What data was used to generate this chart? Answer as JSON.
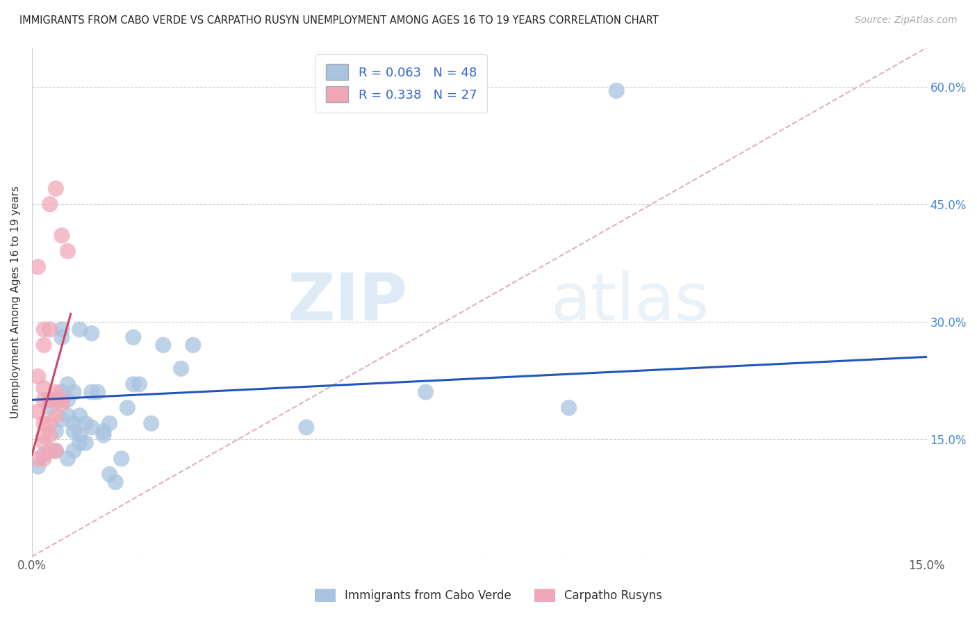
{
  "title": "IMMIGRANTS FROM CABO VERDE VS CARPATHO RUSYN UNEMPLOYMENT AMONG AGES 16 TO 19 YEARS CORRELATION CHART",
  "source": "Source: ZipAtlas.com",
  "ylabel": "Unemployment Among Ages 16 to 19 years",
  "xlim": [
    0,
    0.15
  ],
  "ylim": [
    0,
    0.65
  ],
  "x_ticks": [
    0.0,
    0.05,
    0.1,
    0.15
  ],
  "x_tick_labels": [
    "0.0%",
    "",
    "",
    "15.0%"
  ],
  "y_ticks": [
    0.0,
    0.15,
    0.3,
    0.45,
    0.6
  ],
  "y_tick_labels_right": [
    "",
    "15.0%",
    "30.0%",
    "45.0%",
    "60.0%"
  ],
  "legend1_r": "0.063",
  "legend1_n": "48",
  "legend2_r": "0.338",
  "legend2_n": "27",
  "cabo_verde_color": "#a8c4e0",
  "carpatho_rusyn_color": "#f0a8b8",
  "cabo_verde_line_color": "#2255bb",
  "carpatho_rusyn_line_color": "#cc4466",
  "diagonal_line_color": "#e0b0b8",
  "watermark_zip": "ZIP",
  "watermark_atlas": "atlas",
  "cabo_verde_points": [
    [
      0.001,
      0.115
    ],
    [
      0.002,
      0.13
    ],
    [
      0.003,
      0.19
    ],
    [
      0.003,
      0.2
    ],
    [
      0.004,
      0.135
    ],
    [
      0.004,
      0.16
    ],
    [
      0.004,
      0.2
    ],
    [
      0.005,
      0.175
    ],
    [
      0.005,
      0.2
    ],
    [
      0.005,
      0.21
    ],
    [
      0.005,
      0.28
    ],
    [
      0.005,
      0.29
    ],
    [
      0.006,
      0.125
    ],
    [
      0.006,
      0.18
    ],
    [
      0.006,
      0.2
    ],
    [
      0.006,
      0.22
    ],
    [
      0.007,
      0.135
    ],
    [
      0.007,
      0.16
    ],
    [
      0.007,
      0.17
    ],
    [
      0.007,
      0.21
    ],
    [
      0.008,
      0.145
    ],
    [
      0.008,
      0.155
    ],
    [
      0.008,
      0.18
    ],
    [
      0.008,
      0.29
    ],
    [
      0.009,
      0.145
    ],
    [
      0.009,
      0.17
    ],
    [
      0.01,
      0.165
    ],
    [
      0.01,
      0.21
    ],
    [
      0.01,
      0.285
    ],
    [
      0.011,
      0.21
    ],
    [
      0.012,
      0.155
    ],
    [
      0.012,
      0.16
    ],
    [
      0.013,
      0.105
    ],
    [
      0.013,
      0.17
    ],
    [
      0.014,
      0.095
    ],
    [
      0.015,
      0.125
    ],
    [
      0.016,
      0.19
    ],
    [
      0.017,
      0.22
    ],
    [
      0.017,
      0.28
    ],
    [
      0.018,
      0.22
    ],
    [
      0.02,
      0.17
    ],
    [
      0.022,
      0.27
    ],
    [
      0.025,
      0.24
    ],
    [
      0.027,
      0.27
    ],
    [
      0.046,
      0.165
    ],
    [
      0.066,
      0.21
    ],
    [
      0.09,
      0.19
    ],
    [
      0.098,
      0.595
    ]
  ],
  "carpatho_rusyn_points": [
    [
      0.001,
      0.125
    ],
    [
      0.001,
      0.185
    ],
    [
      0.001,
      0.23
    ],
    [
      0.001,
      0.37
    ],
    [
      0.002,
      0.125
    ],
    [
      0.002,
      0.145
    ],
    [
      0.002,
      0.155
    ],
    [
      0.002,
      0.17
    ],
    [
      0.002,
      0.2
    ],
    [
      0.002,
      0.215
    ],
    [
      0.002,
      0.27
    ],
    [
      0.002,
      0.29
    ],
    [
      0.003,
      0.135
    ],
    [
      0.003,
      0.155
    ],
    [
      0.003,
      0.17
    ],
    [
      0.003,
      0.2
    ],
    [
      0.003,
      0.29
    ],
    [
      0.003,
      0.45
    ],
    [
      0.004,
      0.135
    ],
    [
      0.004,
      0.18
    ],
    [
      0.004,
      0.2
    ],
    [
      0.004,
      0.21
    ],
    [
      0.004,
      0.47
    ],
    [
      0.005,
      0.195
    ],
    [
      0.005,
      0.2
    ],
    [
      0.005,
      0.41
    ],
    [
      0.006,
      0.39
    ]
  ],
  "cabo_verde_trendline": [
    [
      0.0,
      0.2
    ],
    [
      0.15,
      0.255
    ]
  ],
  "carpatho_rusyn_trendline": [
    [
      0.0,
      0.13
    ],
    [
      0.0065,
      0.31
    ]
  ],
  "diagonal_line": [
    [
      0.0,
      0.0
    ],
    [
      0.15,
      0.65
    ]
  ]
}
